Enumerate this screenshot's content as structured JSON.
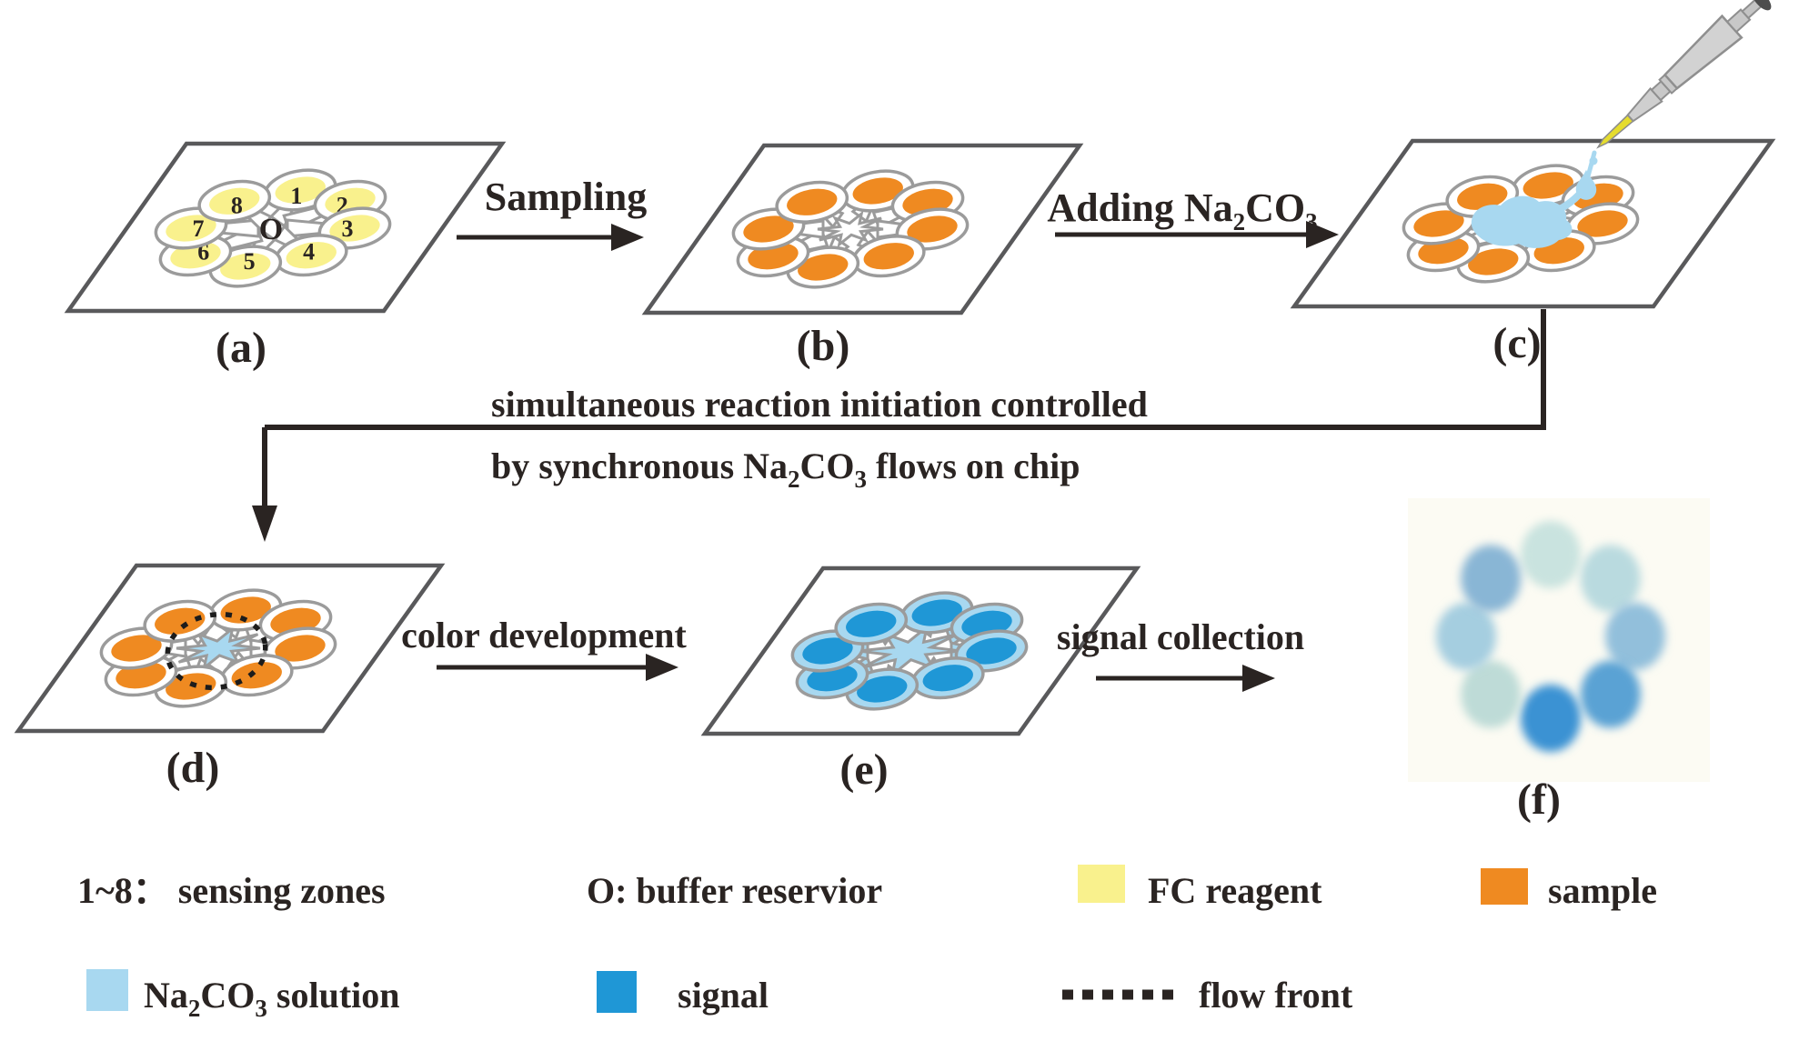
{
  "colors": {
    "fc_reagent": "#F9F18D",
    "sample": "#EF8A21",
    "na2co3_solution": "#A8D8F0",
    "signal": "#1F97D6",
    "chip_outline": "#59595B",
    "channel_outline": "#9B9B9B",
    "text": "#2A2422",
    "flow_front": "#1C1C1C",
    "pipette_body": "#D2D2D2",
    "pipette_tip": "#E5DC2E",
    "photo_background": "#FCFBF3"
  },
  "panels": {
    "a": {
      "label": "(a)",
      "zone_numbers": [
        "1",
        "2",
        "3",
        "4",
        "5",
        "6",
        "7",
        "8"
      ],
      "center_label": "O",
      "zone_fill": "#F9F18D",
      "bulb_fill": "#FFFFFF",
      "stem_fill": "#FFFFFF",
      "has_star": false,
      "stem_r1": 16
    },
    "b": {
      "label": "(b)",
      "zone_fill": "#EF8A21",
      "bulb_fill": "#FFFFFF",
      "stem_fill": "#FFFFFF",
      "star_fill": "#FFFFFF",
      "star_r": 36,
      "stem_r1": 30
    },
    "c": {
      "label": "(c)",
      "zone_fill": "#EF8A21",
      "bulb_fill": "#FFFFFF",
      "stem_fill": "#FFFFFF",
      "star_fill": "#FFFFFF",
      "star_r": 36,
      "stem_r1": 30,
      "droplet": true
    },
    "d": {
      "label": "(d)",
      "zone_fill": "#EF8A21",
      "bulb_fill": "#FFFFFF",
      "stem_fill": "#FFFFFF",
      "star_fill": "#A8D8F0",
      "star_r": 46,
      "stem_r1": 36,
      "flow_front": true
    },
    "e": {
      "label": "(e)",
      "zone_fill": "#1F97D6",
      "bulb_fill": "#A8D8F0",
      "stem_fill": "#A8D8F0",
      "star_fill": "#A8D8F0",
      "star_r": 56,
      "stem_r1": 46
    },
    "f": {
      "label": "(f)",
      "dots": [
        {
          "position": "top",
          "color": "#C9E3DF"
        },
        {
          "position": "top-right",
          "color": "#B9DADF"
        },
        {
          "position": "right",
          "color": "#92BFDB"
        },
        {
          "position": "bottom-right",
          "color": "#5AA2D4"
        },
        {
          "position": "bottom",
          "color": "#3B92D3"
        },
        {
          "position": "bottom-left",
          "color": "#BEDBD7"
        },
        {
          "position": "left",
          "color": "#A5CEE0"
        },
        {
          "position": "top-left",
          "color": "#89B6D5"
        }
      ]
    }
  },
  "steps": {
    "sampling": {
      "label": "Sampling"
    },
    "adding_na2co3": {
      "parts": [
        {
          "t": "Adding Na"
        },
        {
          "t": "2"
        },
        {
          "t": "CO"
        },
        {
          "t": "3"
        }
      ]
    },
    "reaction_note": {
      "line1": "simultaneous reaction initiation controlled",
      "line2_parts": [
        {
          "t": "by synchronous Na"
        },
        {
          "t": "2"
        },
        {
          "t": "CO"
        },
        {
          "t": "3"
        },
        {
          "t": " flows on chip"
        }
      ]
    },
    "color_development": {
      "label": "color development"
    },
    "signal_collection": {
      "label": "signal collection"
    }
  },
  "legend": {
    "sensing_zones": "1~8： sensing zones",
    "buffer": "O: buffer reservior",
    "fc_reagent": "FC  reagent",
    "sample": "sample",
    "na2co3_parts": [
      {
        "t": "Na"
      },
      {
        "t": "2"
      },
      {
        "t": "CO"
      },
      {
        "t": "3"
      },
      {
        "t": " solution"
      }
    ],
    "signal": "signal",
    "flow_front": "flow front"
  }
}
